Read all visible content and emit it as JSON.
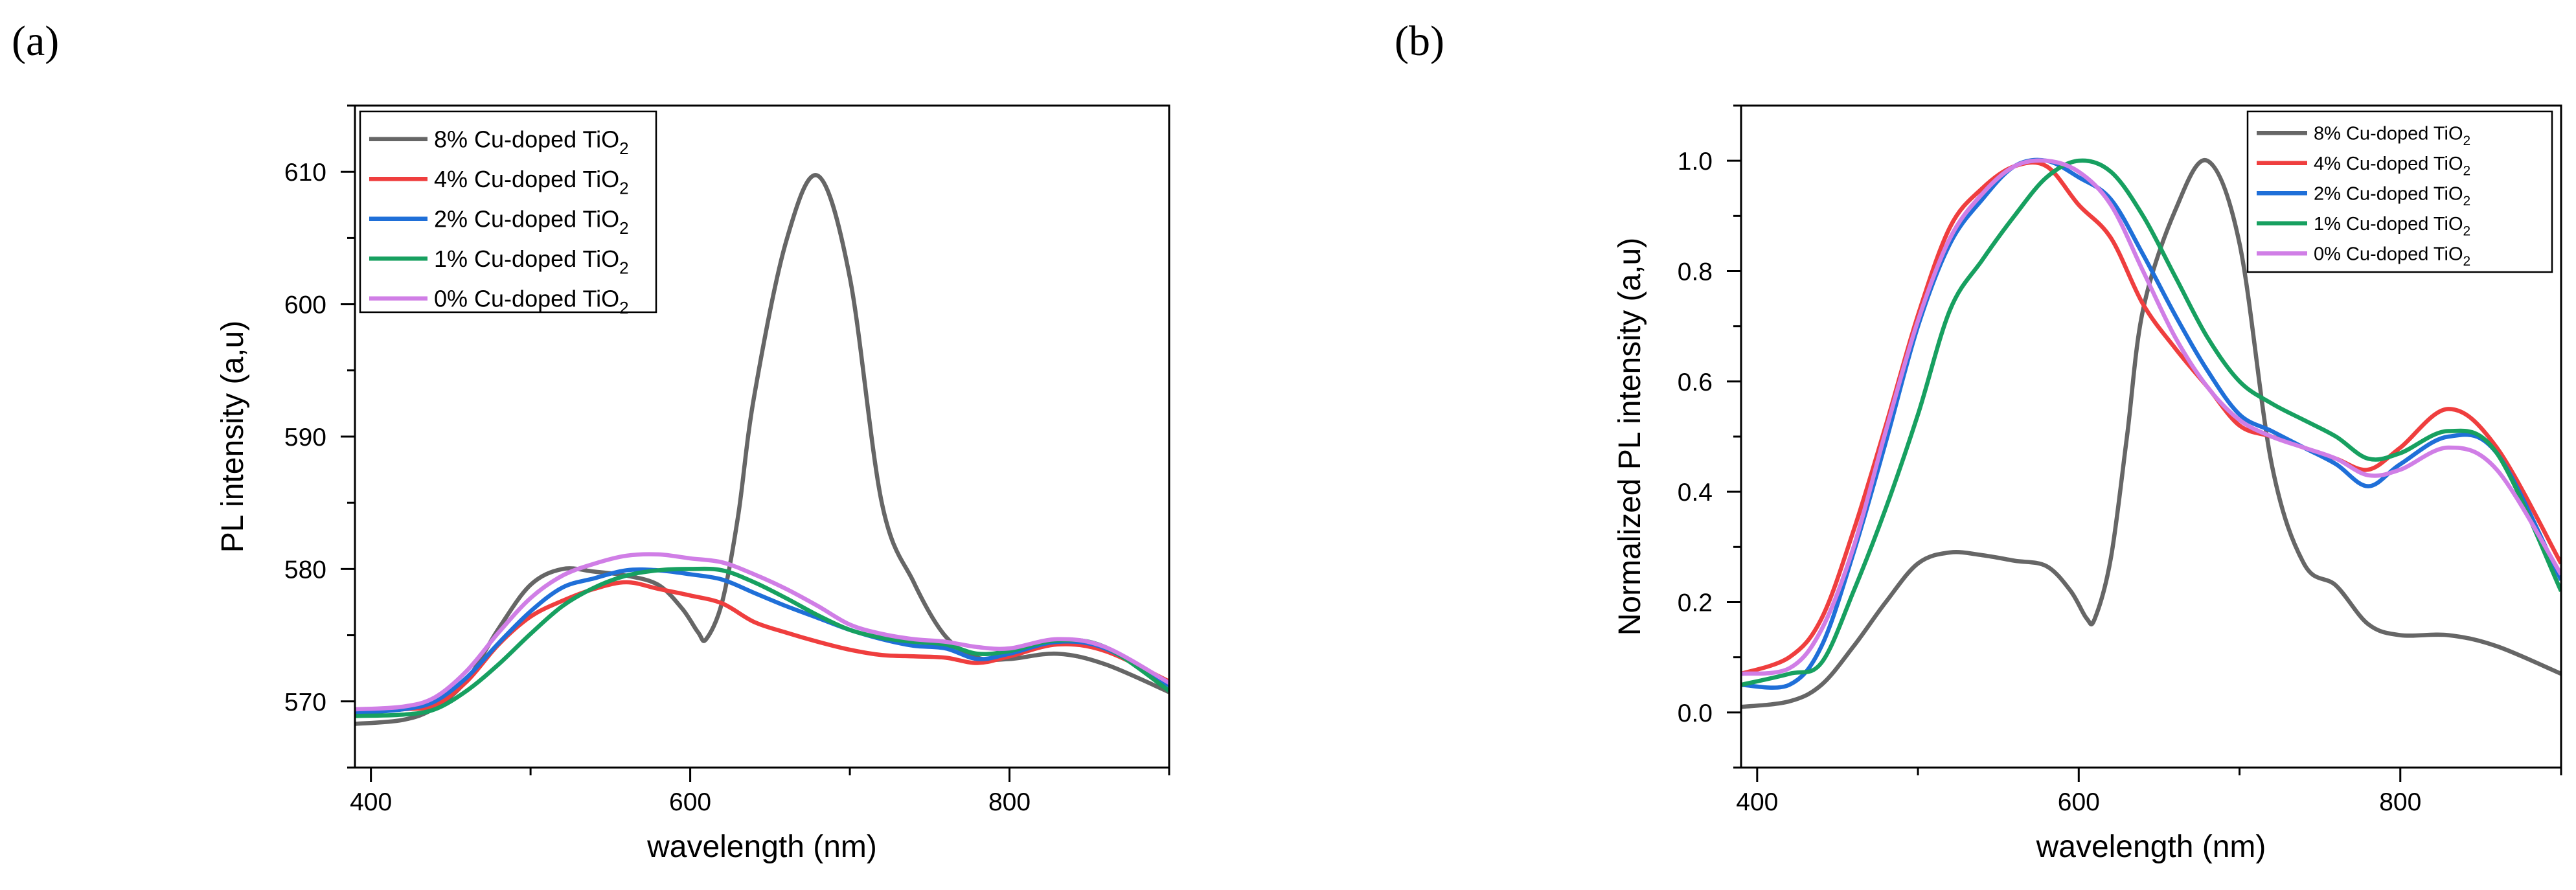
{
  "chart_data": [
    {
      "panel_label": "(a)",
      "type": "line",
      "xlabel": "wavelength (nm)",
      "ylabel": "PL intensity (a,u)",
      "xlim": [
        390,
        900
      ],
      "ylim": [
        565,
        615
      ],
      "xticks": [
        400,
        600,
        800
      ],
      "yticks": [
        570,
        580,
        590,
        600,
        610
      ],
      "grid": false,
      "legend": "top-left",
      "series": [
        {
          "name": "8% Cu-doped TiO",
          "sub": "2",
          "color": "#666666",
          "x": [
            390,
            420,
            440,
            460,
            480,
            500,
            520,
            540,
            560,
            580,
            595,
            605,
            610,
            620,
            630,
            640,
            660,
            680,
            700,
            720,
            740,
            760,
            780,
            800,
            830,
            860,
            900
          ],
          "y": [
            568.3,
            568.6,
            569.5,
            571.6,
            575.5,
            578.8,
            580.0,
            579.8,
            579.5,
            578.8,
            577.0,
            575.2,
            574.7,
            577.5,
            584,
            593,
            604.7,
            609.7,
            602,
            585,
            579,
            574.9,
            573.3,
            573.2,
            573.6,
            572.8,
            570.7
          ]
        },
        {
          "name": "4% Cu-doped TiO",
          "sub": "2",
          "color": "#ef3e3e",
          "x": [
            390,
            420,
            440,
            460,
            480,
            500,
            520,
            540,
            560,
            580,
            600,
            620,
            640,
            660,
            680,
            700,
            720,
            740,
            760,
            780,
            800,
            830,
            860,
            900
          ],
          "y": [
            569.1,
            569.4,
            569.7,
            571.5,
            574.3,
            576.4,
            577.6,
            578.5,
            579.0,
            578.5,
            578.0,
            577.4,
            576.0,
            575.2,
            574.5,
            573.9,
            573.5,
            573.4,
            573.3,
            572.9,
            573.4,
            574.3,
            573.8,
            571.5
          ]
        },
        {
          "name": "2% Cu-doped TiO",
          "sub": "2",
          "color": "#1f6fd8",
          "x": [
            390,
            420,
            440,
            460,
            480,
            500,
            520,
            540,
            560,
            580,
            600,
            620,
            640,
            660,
            680,
            700,
            720,
            740,
            760,
            780,
            800,
            830,
            860,
            900
          ],
          "y": [
            569.1,
            569.4,
            570.0,
            571.8,
            574.4,
            576.8,
            578.6,
            579.3,
            579.9,
            579.9,
            579.6,
            579.2,
            578.2,
            577.2,
            576.3,
            575.4,
            574.7,
            574.2,
            574.0,
            573.2,
            573.6,
            574.5,
            574.0,
            571.2
          ]
        },
        {
          "name": "1% Cu-doped TiO",
          "sub": "2",
          "color": "#17a060",
          "x": [
            390,
            420,
            440,
            460,
            480,
            500,
            520,
            540,
            560,
            580,
            600,
            620,
            640,
            660,
            680,
            700,
            720,
            740,
            760,
            780,
            800,
            830,
            860,
            900
          ],
          "y": [
            568.9,
            569.0,
            569.4,
            570.8,
            572.8,
            575.1,
            577.2,
            578.6,
            579.5,
            579.9,
            580.0,
            579.9,
            579.0,
            577.8,
            576.5,
            575.4,
            574.8,
            574.5,
            574.3,
            573.6,
            573.8,
            574.6,
            574.1,
            570.8
          ]
        },
        {
          "name": "0% Cu-doped TiO",
          "sub": "2",
          "color": "#d07ee6",
          "x": [
            390,
            420,
            440,
            460,
            480,
            500,
            520,
            540,
            560,
            580,
            600,
            620,
            640,
            660,
            680,
            700,
            720,
            740,
            760,
            780,
            800,
            830,
            860,
            900
          ],
          "y": [
            569.4,
            569.6,
            570.3,
            572.3,
            575.2,
            577.8,
            579.5,
            580.4,
            581.0,
            581.1,
            580.8,
            580.5,
            579.6,
            578.5,
            577.2,
            575.8,
            575.1,
            574.7,
            574.5,
            574.1,
            574.0,
            574.7,
            574.1,
            571.4
          ]
        }
      ]
    },
    {
      "panel_label": "(b)",
      "type": "line",
      "xlabel": "wavelength (nm)",
      "ylabel": "Normalized PL intensity (a,u)",
      "xlim": [
        390,
        900
      ],
      "ylim": [
        -0.1,
        1.1
      ],
      "xticks": [
        400,
        600,
        800
      ],
      "yticks": [
        0.0,
        0.2,
        0.4,
        0.6,
        0.8,
        1.0
      ],
      "ytick_labels": [
        "0.0",
        "0.2",
        "0.4",
        "0.6",
        "0.8",
        "1.0"
      ],
      "grid": false,
      "legend": "top-right",
      "series": [
        {
          "name": "8% Cu-doped TiO",
          "sub": "2",
          "color": "#666666",
          "x": [
            390,
            420,
            440,
            460,
            480,
            500,
            520,
            540,
            560,
            580,
            595,
            605,
            610,
            620,
            630,
            640,
            660,
            680,
            700,
            720,
            740,
            760,
            780,
            800,
            830,
            860,
            900
          ],
          "y": [
            0.01,
            0.02,
            0.05,
            0.12,
            0.2,
            0.27,
            0.29,
            0.285,
            0.275,
            0.265,
            0.22,
            0.17,
            0.17,
            0.28,
            0.5,
            0.73,
            0.91,
            1.0,
            0.85,
            0.45,
            0.27,
            0.23,
            0.16,
            0.14,
            0.14,
            0.12,
            0.07
          ]
        },
        {
          "name": "4% Cu-doped TiO",
          "sub": "2",
          "color": "#ef3e3e",
          "x": [
            390,
            420,
            440,
            460,
            480,
            500,
            520,
            540,
            560,
            580,
            600,
            620,
            640,
            660,
            680,
            700,
            720,
            740,
            760,
            780,
            800,
            830,
            860,
            900
          ],
          "y": [
            0.07,
            0.1,
            0.17,
            0.33,
            0.52,
            0.72,
            0.88,
            0.95,
            0.99,
            0.99,
            0.92,
            0.86,
            0.74,
            0.66,
            0.59,
            0.52,
            0.5,
            0.48,
            0.46,
            0.44,
            0.48,
            0.55,
            0.48,
            0.27
          ]
        },
        {
          "name": "2% Cu-doped TiO",
          "sub": "2",
          "color": "#1f6fd8",
          "x": [
            390,
            420,
            440,
            460,
            480,
            500,
            520,
            540,
            560,
            580,
            600,
            620,
            640,
            660,
            680,
            700,
            720,
            740,
            760,
            780,
            800,
            830,
            860,
            900
          ],
          "y": [
            0.05,
            0.05,
            0.12,
            0.29,
            0.49,
            0.7,
            0.85,
            0.93,
            0.99,
            1.0,
            0.97,
            0.93,
            0.83,
            0.72,
            0.62,
            0.54,
            0.51,
            0.48,
            0.45,
            0.41,
            0.45,
            0.5,
            0.47,
            0.24
          ]
        },
        {
          "name": "1% Cu-doped TiO",
          "sub": "2",
          "color": "#17a060",
          "x": [
            390,
            420,
            440,
            460,
            480,
            500,
            520,
            540,
            560,
            580,
            600,
            620,
            640,
            660,
            680,
            700,
            720,
            740,
            760,
            780,
            800,
            830,
            860,
            900
          ],
          "y": [
            0.05,
            0.07,
            0.09,
            0.22,
            0.37,
            0.54,
            0.73,
            0.82,
            0.9,
            0.97,
            1.0,
            0.98,
            0.9,
            0.79,
            0.68,
            0.6,
            0.56,
            0.53,
            0.5,
            0.46,
            0.47,
            0.51,
            0.47,
            0.22
          ]
        },
        {
          "name": "0% Cu-doped TiO",
          "sub": "2",
          "color": "#d07ee6",
          "x": [
            390,
            420,
            440,
            460,
            480,
            500,
            520,
            540,
            560,
            580,
            600,
            620,
            640,
            660,
            680,
            700,
            720,
            740,
            760,
            780,
            800,
            830,
            860,
            900
          ],
          "y": [
            0.07,
            0.08,
            0.15,
            0.3,
            0.51,
            0.71,
            0.86,
            0.94,
            0.99,
            1.0,
            0.98,
            0.92,
            0.8,
            0.68,
            0.59,
            0.53,
            0.5,
            0.48,
            0.46,
            0.43,
            0.44,
            0.48,
            0.44,
            0.25
          ]
        }
      ]
    }
  ]
}
